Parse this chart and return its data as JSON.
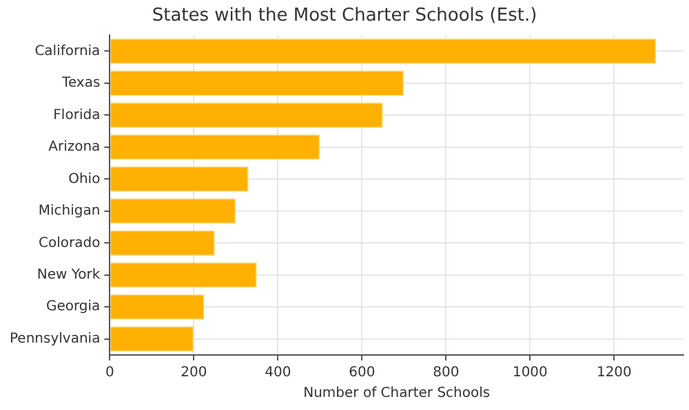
{
  "chart_data": {
    "type": "bar",
    "orientation": "horizontal",
    "title": "States with the Most Charter Schools (Est.)",
    "xlabel": "Number of Charter Schools",
    "categories": [
      "California",
      "Texas",
      "Florida",
      "Arizona",
      "Ohio",
      "Michigan",
      "Colorado",
      "New York",
      "Georgia",
      "Pennsylvania"
    ],
    "values": [
      1300,
      700,
      650,
      500,
      330,
      300,
      250,
      350,
      225,
      200
    ],
    "color": "#ffb000",
    "xlim": [
      0,
      1365
    ],
    "xticks": [
      0,
      200,
      400,
      600,
      800,
      1000,
      1200
    ],
    "grid": true
  }
}
